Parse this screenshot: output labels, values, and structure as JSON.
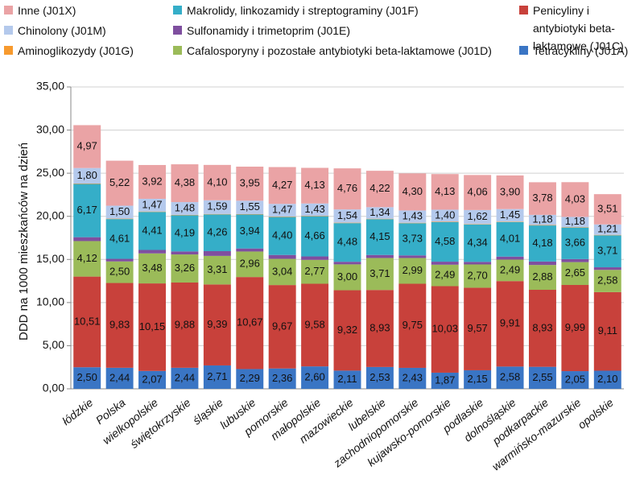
{
  "chart_data": {
    "type": "stacked_bar",
    "y_label": "DDD na 1000 mieszkańców na dzień",
    "categories": [
      "łódzkie",
      "Polska",
      "wielkopolskie",
      "świętokrzyskie",
      "śląskie",
      "lubuskie",
      "pomorskie",
      "małopolskie",
      "mazowieckie",
      "lubelskie",
      "zachodniopomorskie",
      "kujawsko-pomorskie",
      "podlaskie",
      "dolnośląskie",
      "podkarpackie",
      "warmińsko-mazurskie",
      "opolskie"
    ],
    "series": [
      {
        "name": "Tetracykliny (J01A)",
        "color": "#3a75c4",
        "values": [
          2.5,
          2.44,
          2.07,
          2.44,
          2.71,
          2.29,
          2.36,
          2.6,
          2.11,
          2.53,
          2.43,
          1.87,
          2.15,
          2.58,
          2.55,
          2.05,
          2.1
        ],
        "value_labels": [
          "2,50",
          "2,44",
          "2,07",
          "2,44",
          "2,71",
          "2,29",
          "2,36",
          "2,60",
          "2,11",
          "2,53",
          "2,43",
          "1,87",
          "2,15",
          "2,58",
          "2,55",
          "2,05",
          "2,10"
        ]
      },
      {
        "name": "Penicyliny i antybiotyki beta-laktamowe (J01C)",
        "color": "#c8413b",
        "values": [
          10.51,
          9.83,
          10.15,
          9.88,
          9.39,
          10.67,
          9.67,
          9.58,
          9.32,
          8.93,
          9.75,
          10.03,
          9.57,
          9.91,
          8.93,
          9.99,
          9.11
        ],
        "value_labels": [
          "10,51",
          "9,83",
          "10,15",
          "9,88",
          "9,39",
          "10,67",
          "9,67",
          "9,58",
          "9,32",
          "8,93",
          "9,75",
          "10,03",
          "9,57",
          "9,91",
          "8,93",
          "9,99",
          "9,11"
        ]
      },
      {
        "name": "Cafalosporyny i pozostałe antybiotyki beta-laktamowe (J01D)",
        "color": "#9bbb59",
        "values": [
          4.12,
          2.5,
          3.48,
          3.26,
          3.31,
          2.96,
          3.04,
          2.77,
          3.0,
          3.71,
          2.99,
          2.49,
          2.7,
          2.49,
          2.88,
          2.65,
          2.58
        ],
        "value_labels": [
          "4,12",
          "2,50",
          "3,48",
          "3,26",
          "3,31",
          "2,96",
          "3,04",
          "2,77",
          "3,00",
          "3,71",
          "2,99",
          "2,49",
          "2,70",
          "2,49",
          "2,88",
          "2,65",
          "2,58"
        ]
      },
      {
        "name": "Sulfonamidy i trimetoprim (J01E)",
        "color": "#7f4f9f",
        "values": [
          0.45,
          0.3,
          0.4,
          0.35,
          0.55,
          0.35,
          0.45,
          0.4,
          0.3,
          0.35,
          0.3,
          0.35,
          0.3,
          0.35,
          0.4,
          0.35,
          0.3
        ]
      },
      {
        "name": "Makrolidy, linkozamidy i streptograminy (J01F)",
        "color": "#35aec8",
        "values": [
          6.17,
          4.61,
          4.41,
          4.19,
          4.26,
          3.94,
          4.4,
          4.66,
          4.48,
          4.15,
          3.73,
          4.58,
          4.34,
          4.01,
          4.18,
          3.66,
          3.71
        ],
        "value_labels": [
          "6,17",
          "4,61",
          "4,41",
          "4,19",
          "4,26",
          "3,94",
          "4,40",
          "4,66",
          "4,48",
          "4,15",
          "3,73",
          "4,58",
          "4,34",
          "4,01",
          "4,18",
          "3,66",
          "3,71"
        ]
      },
      {
        "name": "Aminoglikozydy (J01G)",
        "color": "#f79a2e",
        "values": [
          0.05,
          0.05,
          0.05,
          0.05,
          0.05,
          0.05,
          0.05,
          0.05,
          0.05,
          0.05,
          0.05,
          0.05,
          0.05,
          0.05,
          0.05,
          0.05,
          0.05
        ]
      },
      {
        "name": "Chinolony (J01M)",
        "color": "#b4c9ec",
        "values": [
          1.8,
          1.5,
          1.47,
          1.48,
          1.59,
          1.55,
          1.47,
          1.43,
          1.54,
          1.34,
          1.43,
          1.4,
          1.62,
          1.45,
          1.18,
          1.18,
          1.21
        ],
        "value_labels": [
          "1,80",
          "1,50",
          "1,47",
          "1,48",
          "1,59",
          "1,55",
          "1,47",
          "1,43",
          "1,54",
          "1,34",
          "1,43",
          "1,40",
          "1,62",
          "1,45",
          "1,18",
          "1,18",
          "1,21"
        ]
      },
      {
        "name": "Inne (J01X)",
        "color": "#eaa3a5",
        "values": [
          4.97,
          5.22,
          3.92,
          4.38,
          4.1,
          3.95,
          4.27,
          4.13,
          4.76,
          4.22,
          4.3,
          4.13,
          4.06,
          3.9,
          3.78,
          4.03,
          3.51
        ],
        "value_labels": [
          "4,97",
          "5,22",
          "3,92",
          "4,38",
          "4,10",
          "3,95",
          "4,27",
          "4,13",
          "4,76",
          "4,22",
          "4,30",
          "4,13",
          "4,06",
          "3,90",
          "3,78",
          "4,03",
          "3,51"
        ]
      }
    ],
    "ylim": [
      0,
      35
    ],
    "yticks": [
      {
        "value": 0,
        "label": "0,00"
      },
      {
        "value": 5,
        "label": "5,00"
      },
      {
        "value": 10,
        "label": "10,00"
      },
      {
        "value": 15,
        "label": "15,00"
      },
      {
        "value": 20,
        "label": "20,00"
      },
      {
        "value": 25,
        "label": "25,00"
      },
      {
        "value": 30,
        "label": "30,00"
      },
      {
        "value": 35,
        "label": "35,00"
      }
    ],
    "grid": true
  }
}
